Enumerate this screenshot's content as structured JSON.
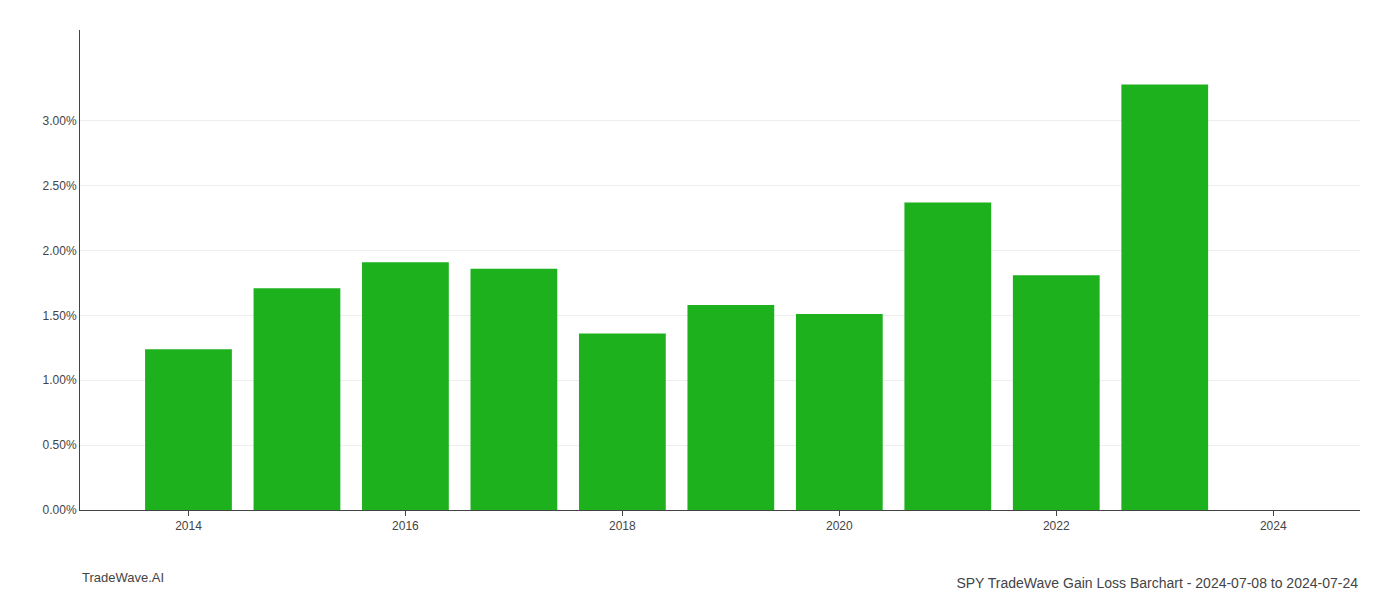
{
  "chart_data": {
    "type": "bar",
    "title": "SPY TradeWave Gain Loss Barchart - 2024-07-08 to 2024-07-24",
    "annotations": [
      "TradeWave.AI"
    ],
    "x": [
      2014,
      2015,
      2016,
      2017,
      2018,
      2019,
      2020,
      2021,
      2022,
      2023
    ],
    "values": [
      0.0124,
      0.0171,
      0.0191,
      0.0186,
      0.0136,
      0.0158,
      0.0151,
      0.0237,
      0.0181,
      0.0328
    ],
    "color": "#1db21d",
    "xlim": [
      2013.0,
      2024.8
    ],
    "xticks": [
      2014,
      2016,
      2018,
      2020,
      2022,
      2024
    ],
    "ylim": [
      0.0,
      0.037
    ],
    "yticks": [
      {
        "value": 0.0,
        "label": "0.00%"
      },
      {
        "value": 0.005,
        "label": "0.50%"
      },
      {
        "value": 0.01,
        "label": "1.00%"
      },
      {
        "value": 0.015,
        "label": "1.50%"
      },
      {
        "value": 0.02,
        "label": "2.00%"
      },
      {
        "value": 0.025,
        "label": "2.50%"
      },
      {
        "value": 0.03,
        "label": "3.00%"
      }
    ],
    "grid": "y"
  }
}
